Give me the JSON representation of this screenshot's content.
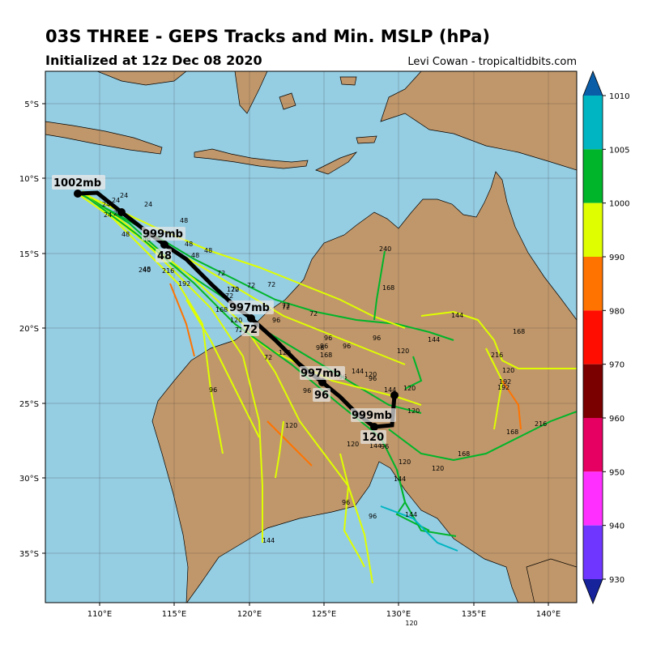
{
  "header": {
    "title": "03S THREE - GEPS Tracks and Min. MSLP (hPa)",
    "subtitle": "Initialized at 12z Dec 08 2020",
    "credit": "Levi Cowan - tropicaltidbits.com"
  },
  "colors": {
    "ocean": "#95cde2",
    "land": "#c0976a",
    "black_track": "#000000"
  },
  "axes": {
    "lon_ticks": [
      "110°E",
      "115°E",
      "120°E",
      "125°E",
      "130°E",
      "135°E",
      "140°E"
    ],
    "lat_ticks": [
      "5°S",
      "10°S",
      "15°S",
      "20°S",
      "25°S",
      "30°S",
      "35°S"
    ],
    "stray_tick_label": "120"
  },
  "colorbar": {
    "ticks": [
      "1010",
      "1005",
      "1000",
      "990",
      "980",
      "970",
      "960",
      "950",
      "940",
      "930"
    ],
    "colors": [
      "#0a5ea8",
      "#00b5c2",
      "#00b52a",
      "#dfff00",
      "#ff7300",
      "#ff0d00",
      "#7a0000",
      "#e60061",
      "#ff30ff",
      "#6e36ff",
      "#16239a"
    ]
  },
  "mean_track": {
    "labels": [
      {
        "pressure": "1002mb",
        "hour": ""
      },
      {
        "pressure": "999mb",
        "hour": "48"
      },
      {
        "pressure": "997mb",
        "hour": "72"
      },
      {
        "pressure": "997mb",
        "hour": "96"
      },
      {
        "pressure": "999mb",
        "hour": "120"
      }
    ]
  },
  "member_labels": [
    "24",
    "24",
    "24",
    "24",
    "24",
    "24",
    "48",
    "48",
    "48",
    "48",
    "48",
    "48",
    "48",
    "72",
    "72",
    "72",
    "72",
    "72",
    "72",
    "72",
    "72",
    "72",
    "72",
    "96",
    "96",
    "96",
    "96",
    "96",
    "96",
    "96",
    "96",
    "96",
    "96",
    "96",
    "96",
    "96",
    "120",
    "120",
    "120",
    "120",
    "120",
    "120",
    "120",
    "120",
    "120",
    "120",
    "120",
    "120",
    "144",
    "144",
    "144",
    "144",
    "144",
    "144",
    "144",
    "144",
    "168",
    "168",
    "168",
    "168",
    "168",
    "168",
    "192",
    "192",
    "192",
    "216",
    "216",
    "216",
    "240",
    "240"
  ]
}
